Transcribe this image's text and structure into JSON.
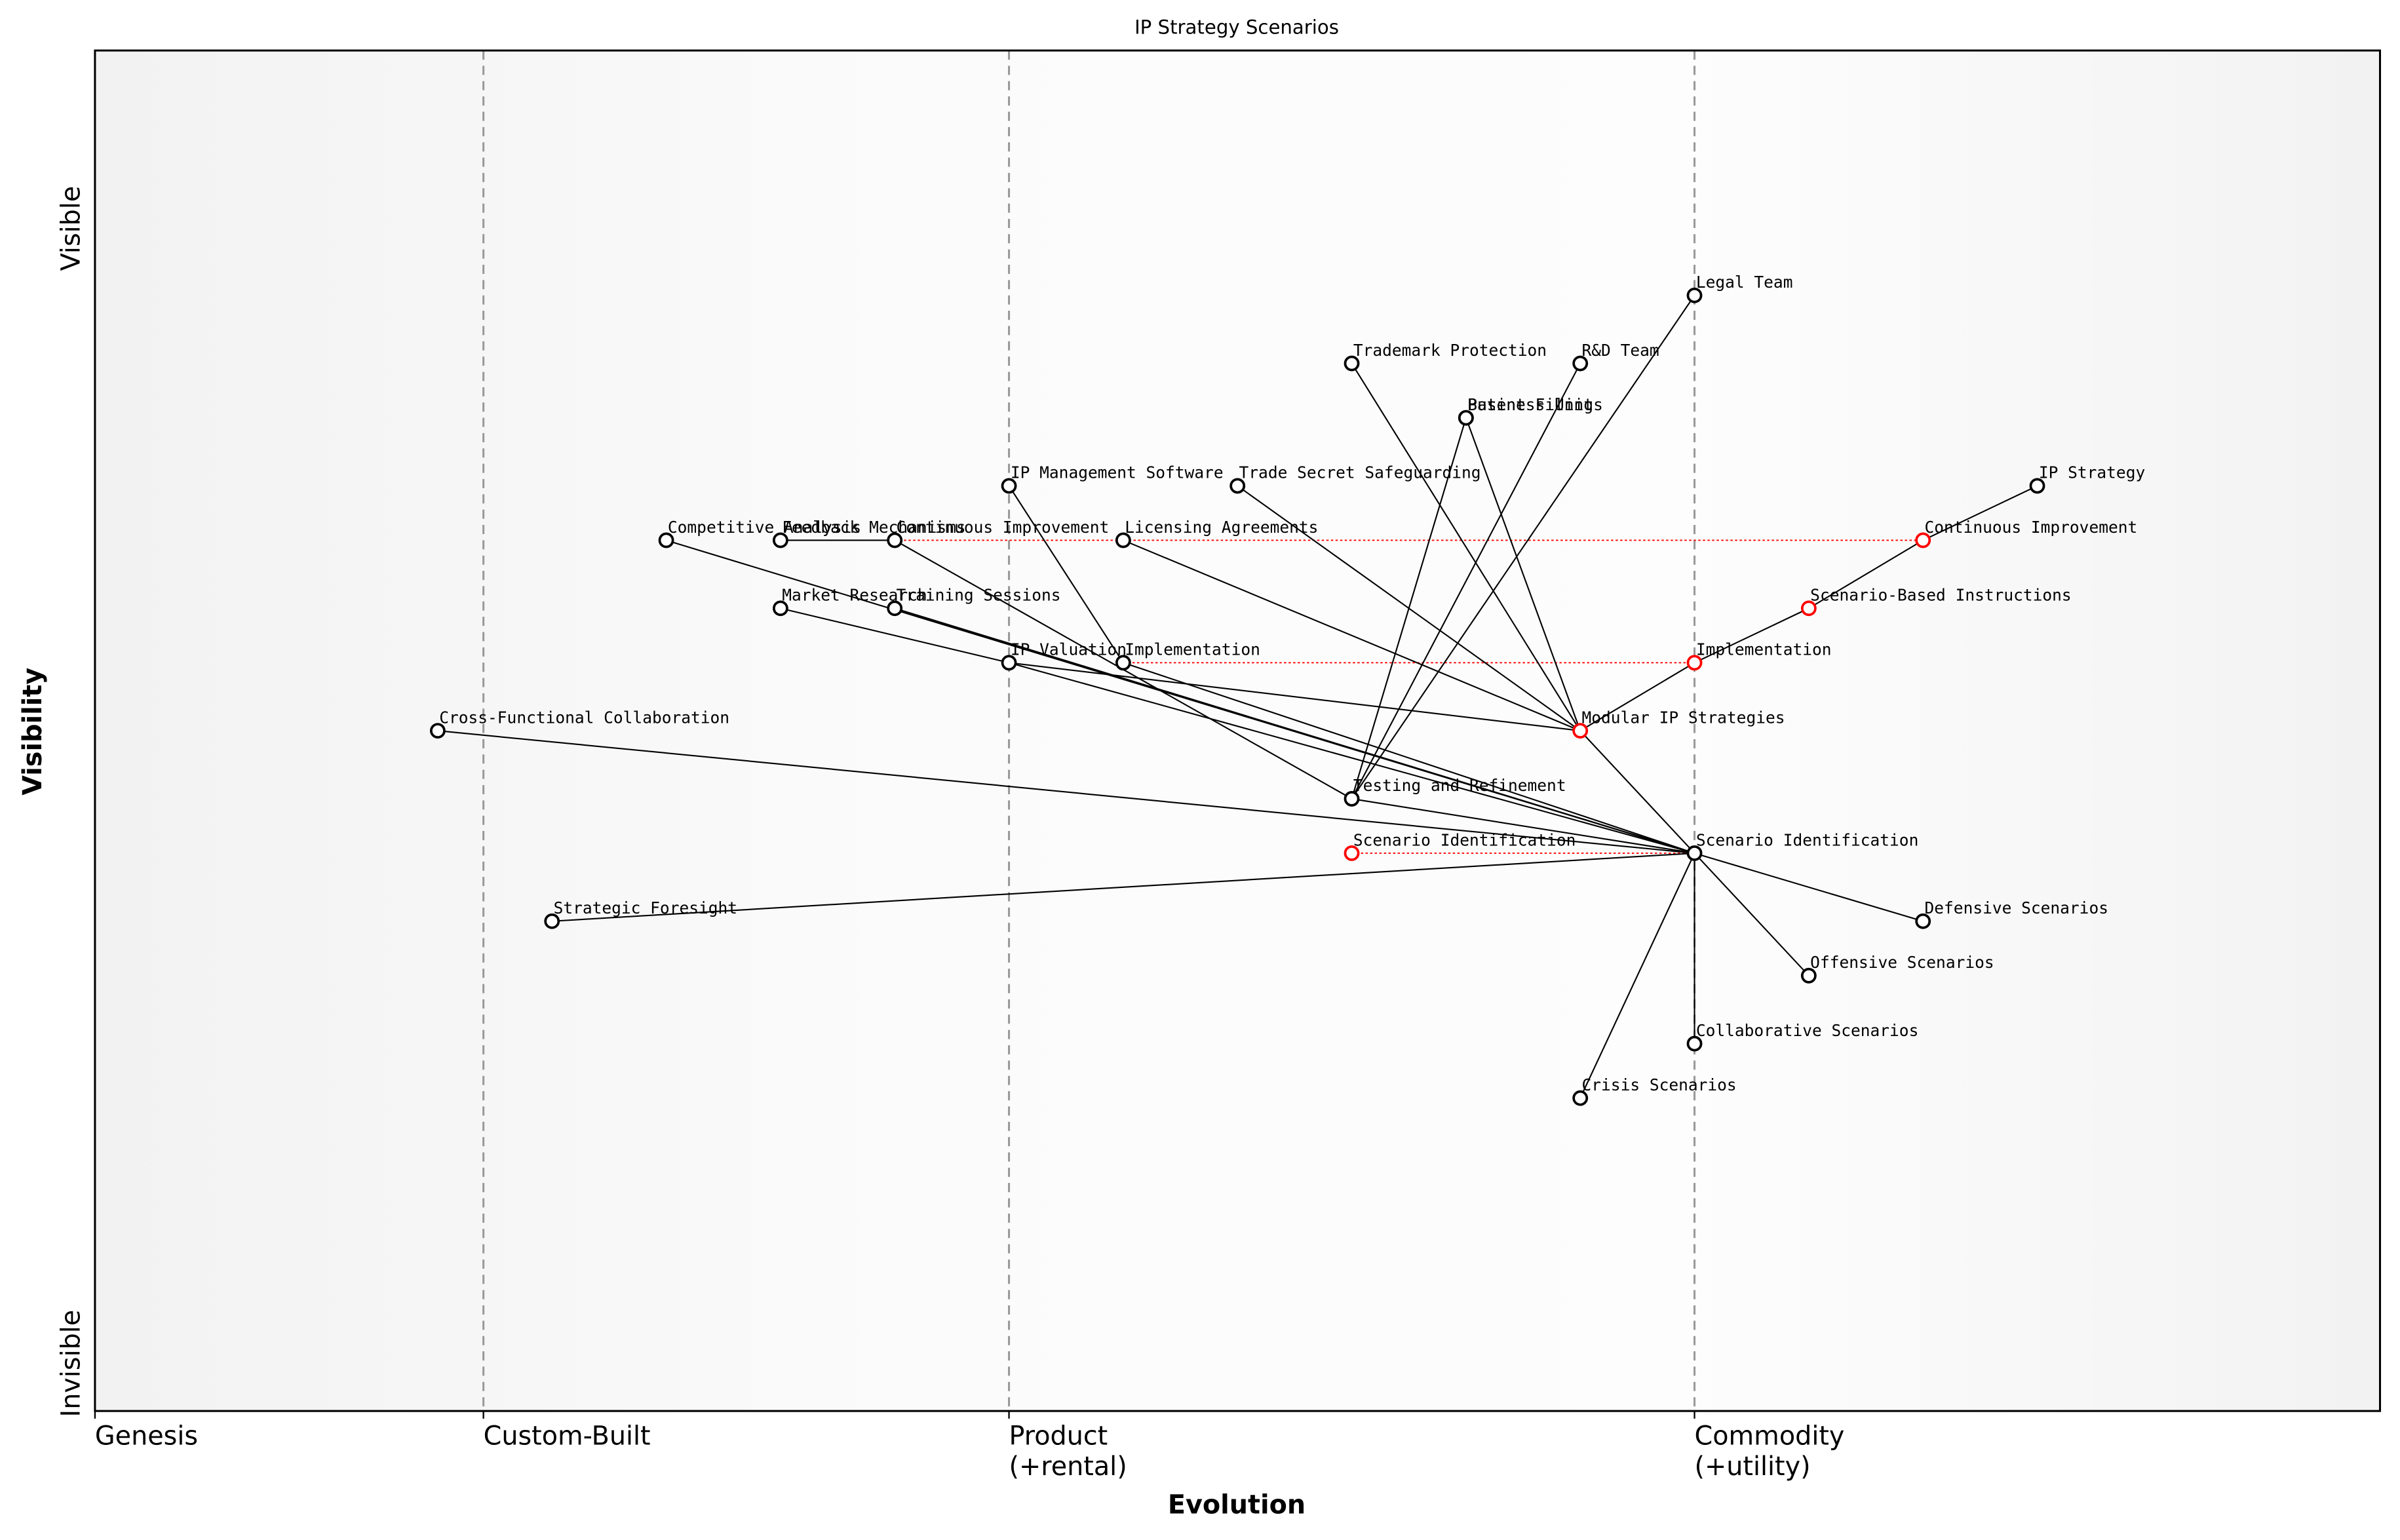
{
  "chart_data": {
    "type": "wardley",
    "title": "IP Strategy Scenarios",
    "x_axis_label": "Evolution",
    "y_axis_label": "Visibility",
    "y_top_label": "Visible",
    "y_bottom_label": "Invisible",
    "stages": [
      {
        "label": "Genesis",
        "position": 0
      },
      {
        "label": "Custom-Built",
        "position": 0.17
      },
      {
        "label": "Product\n(+rental)",
        "position": 0.4
      },
      {
        "label": "Commodity\n(+utility)",
        "position": 0.7
      }
    ],
    "nodes": [
      {
        "label": "Legal Team",
        "evolution": 0.7,
        "visibility": 0.82,
        "color": "black"
      },
      {
        "label": "Trademark Protection",
        "evolution": 0.55,
        "visibility": 0.77,
        "color": "black"
      },
      {
        "label": "R&D Team",
        "evolution": 0.65,
        "visibility": 0.77,
        "color": "black"
      },
      {
        "label": "Patent Filing",
        "evolution": 0.6,
        "visibility": 0.73,
        "color": "black"
      },
      {
        "label": "Business Units",
        "evolution": 0.6,
        "visibility": 0.73,
        "color": "black"
      },
      {
        "label": "IP Management Software",
        "evolution": 0.4,
        "visibility": 0.68,
        "color": "black"
      },
      {
        "label": "Trade Secret Safeguarding",
        "evolution": 0.5,
        "visibility": 0.68,
        "color": "black"
      },
      {
        "label": "IP Strategy",
        "evolution": 0.85,
        "visibility": 0.68,
        "color": "black"
      },
      {
        "label": "Competitive Analysis",
        "evolution": 0.25,
        "visibility": 0.64,
        "color": "black"
      },
      {
        "label": "Feedback Mechanisms",
        "evolution": 0.3,
        "visibility": 0.64,
        "color": "black"
      },
      {
        "label": "Continuous Improvement",
        "evolution": 0.35,
        "visibility": 0.64,
        "color": "black"
      },
      {
        "label": "Licensing Agreements",
        "evolution": 0.45,
        "visibility": 0.64,
        "color": "black"
      },
      {
        "label": "Continuous Improvement",
        "evolution": 0.8,
        "visibility": 0.64,
        "color": "red"
      },
      {
        "label": "Market Research",
        "evolution": 0.3,
        "visibility": 0.59,
        "color": "black"
      },
      {
        "label": "Training Sessions",
        "evolution": 0.35,
        "visibility": 0.59,
        "color": "black"
      },
      {
        "label": "Scenario-Based Instructions",
        "evolution": 0.75,
        "visibility": 0.59,
        "color": "red"
      },
      {
        "label": "IP Valuation",
        "evolution": 0.4,
        "visibility": 0.55,
        "color": "black"
      },
      {
        "label": "Implementation",
        "evolution": 0.45,
        "visibility": 0.55,
        "color": "black"
      },
      {
        "label": "Implementation",
        "evolution": 0.7,
        "visibility": 0.55,
        "color": "red"
      },
      {
        "label": "Cross-Functional Collaboration",
        "evolution": 0.15,
        "visibility": 0.5,
        "color": "black"
      },
      {
        "label": "Modular IP Strategies",
        "evolution": 0.65,
        "visibility": 0.5,
        "color": "red"
      },
      {
        "label": "Testing and Refinement",
        "evolution": 0.55,
        "visibility": 0.45,
        "color": "black"
      },
      {
        "label": "Scenario Identification",
        "evolution": 0.55,
        "visibility": 0.41,
        "color": "red"
      },
      {
        "label": "Scenario Identification",
        "evolution": 0.7,
        "visibility": 0.41,
        "color": "black"
      },
      {
        "label": "Strategic Foresight",
        "evolution": 0.2,
        "visibility": 0.36,
        "color": "black"
      },
      {
        "label": "Defensive Scenarios",
        "evolution": 0.8,
        "visibility": 0.36,
        "color": "black"
      },
      {
        "label": "Offensive Scenarios",
        "evolution": 0.75,
        "visibility": 0.32,
        "color": "black"
      },
      {
        "label": "Collaborative Scenarios",
        "evolution": 0.7,
        "visibility": 0.27,
        "color": "black"
      },
      {
        "label": "Crisis Scenarios",
        "evolution": 0.65,
        "visibility": 0.23,
        "color": "black"
      }
    ],
    "links": [
      [
        7,
        12
      ],
      [
        12,
        15
      ],
      [
        15,
        18
      ],
      [
        18,
        20
      ],
      [
        20,
        23
      ],
      [
        1,
        20
      ],
      [
        6,
        20
      ],
      [
        3,
        20
      ],
      [
        11,
        20
      ],
      [
        16,
        20
      ],
      [
        8,
        23
      ],
      [
        13,
        16
      ],
      [
        16,
        23
      ],
      [
        14,
        23
      ],
      [
        5,
        17
      ],
      [
        17,
        23
      ],
      [
        10,
        21
      ],
      [
        21,
        23
      ],
      [
        2,
        21
      ],
      [
        0,
        21
      ],
      [
        4,
        21
      ],
      [
        19,
        23
      ],
      [
        24,
        23
      ],
      [
        23,
        25
      ],
      [
        23,
        26
      ],
      [
        23,
        27
      ],
      [
        23,
        28
      ],
      [
        9,
        10
      ]
    ],
    "evolution_links": [
      [
        22,
        23
      ],
      [
        17,
        18
      ],
      [
        10,
        12
      ]
    ]
  }
}
